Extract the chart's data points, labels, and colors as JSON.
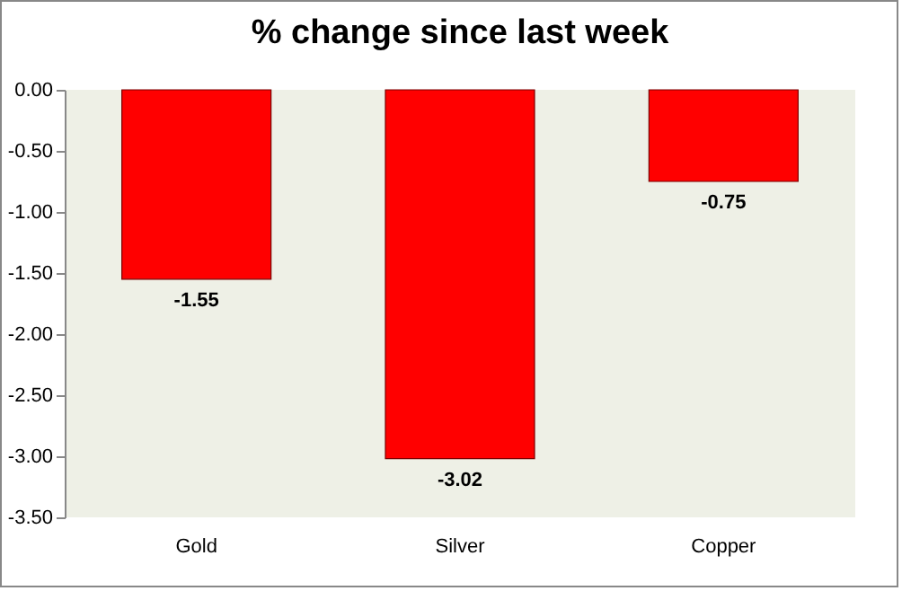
{
  "chart_data": {
    "type": "bar",
    "title": "% change since last week",
    "categories": [
      "Gold",
      "Silver",
      "Copper"
    ],
    "values": [
      -1.55,
      -3.02,
      -0.75
    ],
    "color": "#ff0000",
    "ylim": [
      -3.5,
      0
    ],
    "yticks": [
      {
        "value": 0,
        "label": "0.00"
      },
      {
        "value": -0.5,
        "label": "-0.50"
      },
      {
        "value": -1,
        "label": "-1.00"
      },
      {
        "value": -1.5,
        "label": "-1.50"
      },
      {
        "value": -2,
        "label": "-2.00"
      },
      {
        "value": -2.5,
        "label": "-2.50"
      },
      {
        "value": -3,
        "label": "-3.00"
      },
      {
        "value": -3.5,
        "label": "-3.50"
      }
    ],
    "data_labels": true,
    "grid": false
  }
}
